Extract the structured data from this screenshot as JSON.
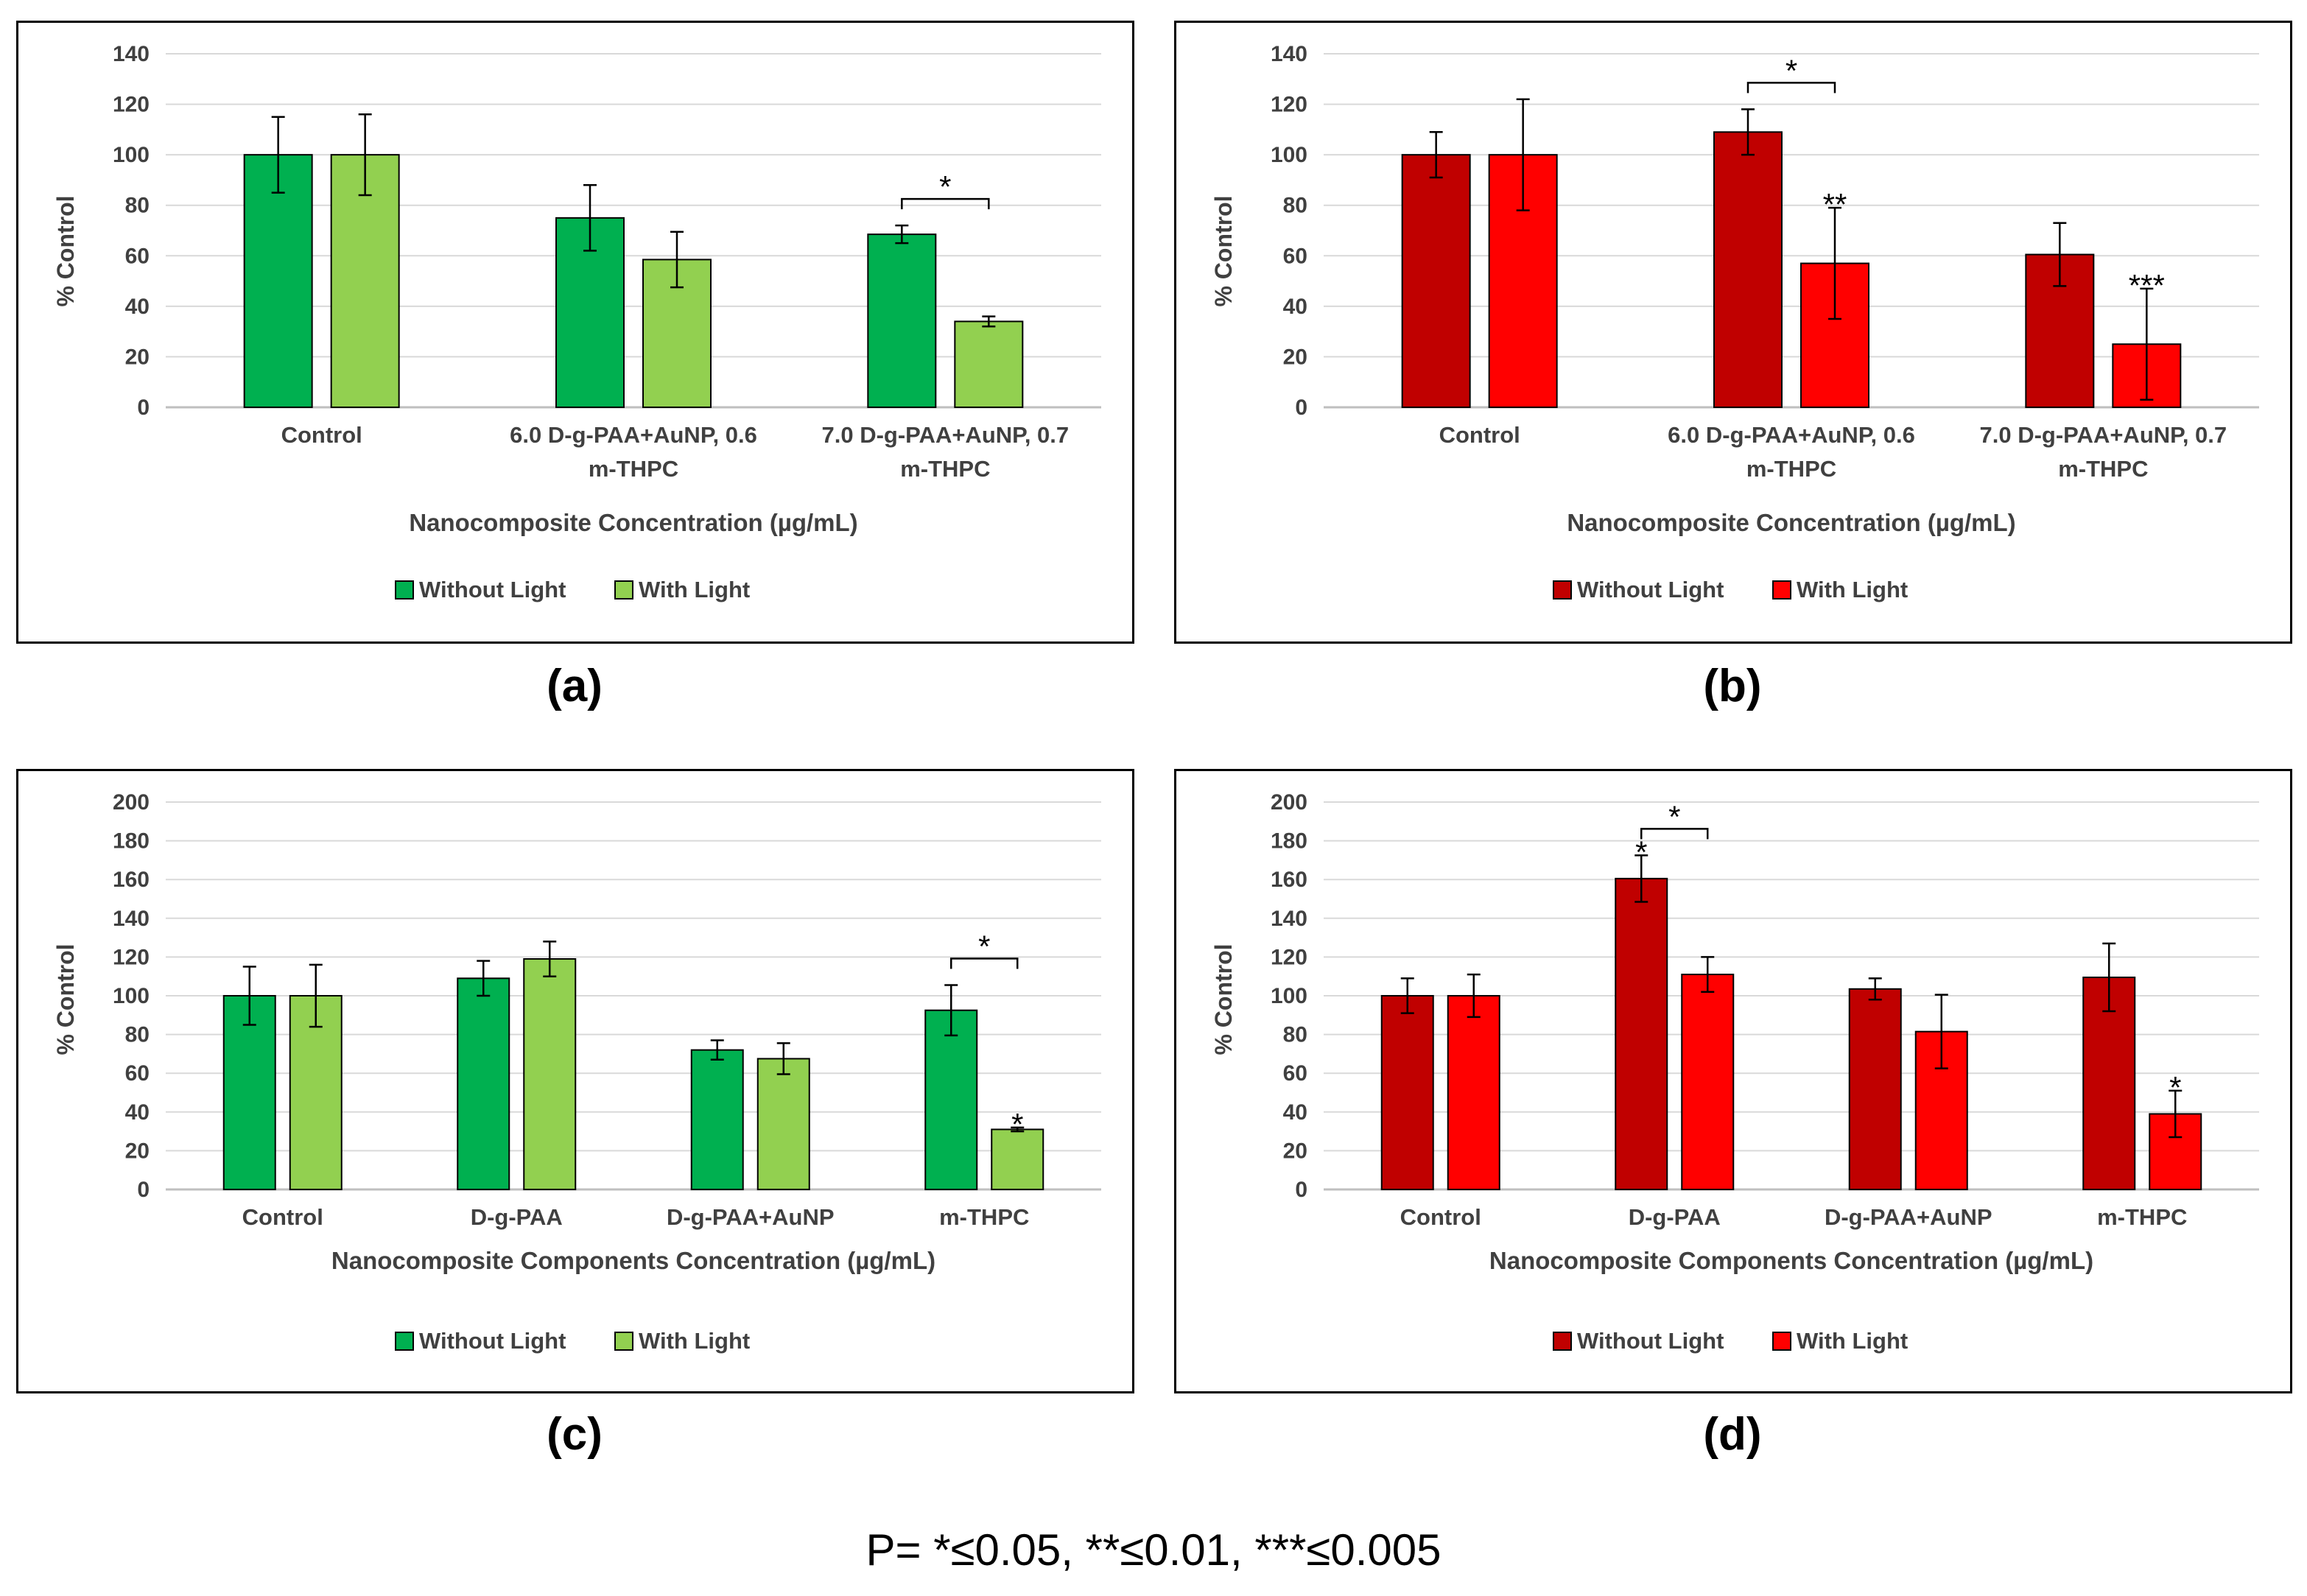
{
  "chart_data": [
    {
      "id": "a",
      "type": "bar",
      "panel_label": "(a)",
      "categories": [
        [
          "Control"
        ],
        [
          "6.0 D-g-PAA+AuNP, 0.6",
          "m-THPC"
        ],
        [
          "7.0 D-g-PAA+AuNP, 0.7",
          "m-THPC"
        ]
      ],
      "series": [
        {
          "name": "Without Light",
          "color": "#00b050",
          "values": [
            100,
            75,
            68.5
          ],
          "errors": [
            15,
            13,
            3.5
          ]
        },
        {
          "name": "With Light",
          "color": "#92d050",
          "values": [
            100,
            58.5,
            34
          ],
          "errors": [
            16,
            11,
            2
          ]
        }
      ],
      "xlabel": "Nanocomposite Concentration (µg/mL)",
      "ylabel": "% Control",
      "ylim": [
        0,
        140
      ],
      "yticks": [
        0,
        20,
        40,
        60,
        80,
        100,
        120,
        140
      ],
      "grid": true,
      "legend": "bottom-center",
      "annotations": [
        {
          "text": "*",
          "kind": "bracket",
          "category": 2
        }
      ]
    },
    {
      "id": "b",
      "type": "bar",
      "panel_label": "(b)",
      "categories": [
        [
          "Control"
        ],
        [
          "6.0 D-g-PAA+AuNP, 0.6",
          "m-THPC"
        ],
        [
          "7.0 D-g-PAA+AuNP, 0.7",
          "m-THPC"
        ]
      ],
      "series": [
        {
          "name": "Without Light",
          "color": "#c00000",
          "values": [
            100,
            109,
            60.5
          ],
          "errors": [
            9,
            9,
            12.5
          ]
        },
        {
          "name": "With Light",
          "color": "#ff0000",
          "values": [
            100,
            57,
            25
          ],
          "errors": [
            22,
            22,
            22
          ]
        }
      ],
      "xlabel": "Nanocomposite Concentration (µg/mL)",
      "ylabel": "% Control",
      "ylim": [
        0,
        140
      ],
      "yticks": [
        0,
        20,
        40,
        60,
        80,
        100,
        120,
        140
      ],
      "grid": true,
      "legend": "bottom-center",
      "annotations": [
        {
          "text": "*",
          "kind": "bracket",
          "category": 1
        },
        {
          "text": "**",
          "kind": "bar",
          "category": 1,
          "series": 1
        },
        {
          "text": "***",
          "kind": "bar",
          "category": 2,
          "series": 1
        }
      ]
    },
    {
      "id": "c",
      "type": "bar",
      "panel_label": "(c)",
      "categories": [
        [
          "Control"
        ],
        [
          "D-g-PAA"
        ],
        [
          "D-g-PAA+AuNP"
        ],
        [
          "m-THPC"
        ]
      ],
      "series": [
        {
          "name": "Without Light",
          "color": "#00b050",
          "values": [
            100,
            109,
            72,
            92.5
          ],
          "errors": [
            15,
            9,
            5,
            13
          ]
        },
        {
          "name": "With Light",
          "color": "#92d050",
          "values": [
            100,
            119,
            67.5,
            31
          ],
          "errors": [
            16,
            9,
            8,
            1
          ]
        }
      ],
      "xlabel": "Nanocomposite Components Concentration (µg/mL)",
      "ylabel": "% Control",
      "ylim": [
        0,
        200
      ],
      "yticks": [
        0,
        20,
        40,
        60,
        80,
        100,
        120,
        140,
        160,
        180,
        200
      ],
      "grid": true,
      "legend": "bottom-center",
      "annotations": [
        {
          "text": "*",
          "kind": "bracket",
          "category": 3
        },
        {
          "text": "*",
          "kind": "bar",
          "category": 3,
          "series": 1
        }
      ]
    },
    {
      "id": "d",
      "type": "bar",
      "panel_label": "(d)",
      "categories": [
        [
          "Control"
        ],
        [
          "D-g-PAA"
        ],
        [
          "D-g-PAA+AuNP"
        ],
        [
          "m-THPC"
        ]
      ],
      "series": [
        {
          "name": "Without Light",
          "color": "#c00000",
          "values": [
            100,
            160.5,
            103.5,
            109.5
          ],
          "errors": [
            9,
            12,
            5.5,
            17.5
          ]
        },
        {
          "name": "With Light",
          "color": "#ff0000",
          "values": [
            100,
            111,
            81.5,
            39
          ],
          "errors": [
            11,
            9,
            19,
            12
          ]
        }
      ],
      "xlabel": "Nanocomposite Components Concentration (µg/mL)",
      "ylabel": "% Control",
      "ylim": [
        0,
        200
      ],
      "yticks": [
        0,
        20,
        40,
        60,
        80,
        100,
        120,
        140,
        160,
        180,
        200
      ],
      "grid": true,
      "legend": "bottom-center",
      "annotations": [
        {
          "text": "*",
          "kind": "bar",
          "category": 1,
          "series": 0
        },
        {
          "text": "*",
          "kind": "bracket",
          "category": 1
        },
        {
          "text": "*",
          "kind": "bar",
          "category": 3,
          "series": 1
        }
      ]
    }
  ],
  "footnote": "P= *≤0.05, **≤0.01, ***≤0.005"
}
